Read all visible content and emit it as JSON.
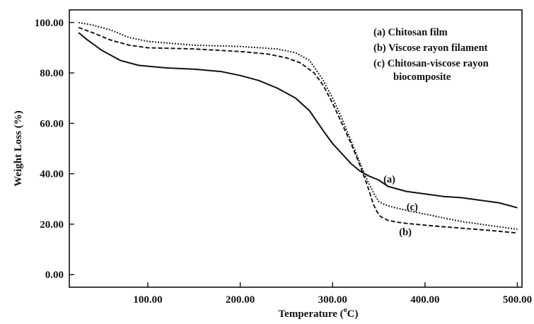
{
  "chart_data": {
    "type": "line",
    "title": "",
    "xlabel": "Temperature (",
    "xlabel_sup": "o",
    "xlabel_unit": "C)",
    "ylabel": "Weight Loss (%)",
    "xlim": [
      15,
      505
    ],
    "ylim": [
      -5,
      105
    ],
    "xticks": [
      "100.00",
      "200.00",
      "300.00",
      "400.00",
      "500.00"
    ],
    "xtick_values": [
      100,
      200,
      300,
      400,
      500
    ],
    "yticks": [
      "0.00",
      "20.00",
      "40.00",
      "60.00",
      "80.00",
      "100.00"
    ],
    "ytick_values": [
      0,
      20,
      40,
      60,
      80,
      100
    ],
    "grid": false,
    "legend_position": "top-right",
    "legend": [
      {
        "line1": "(a) Chitosan film"
      },
      {
        "line1": "(b) Viscose rayon filament"
      },
      {
        "line1": "(c) Chitosan-viscose  rayon",
        "line2": "biocomposite"
      }
    ],
    "annotations": [
      {
        "text": "(a)",
        "x": 355,
        "y": 38
      },
      {
        "text": "(c)",
        "x": 380,
        "y": 27
      },
      {
        "text": "(b)",
        "x": 372,
        "y": 17
      }
    ],
    "series": [
      {
        "name": "(a) Chitosan film",
        "style": "solid",
        "x": [
          25,
          35,
          50,
          70,
          90,
          120,
          150,
          180,
          200,
          220,
          240,
          260,
          275,
          290,
          300,
          310,
          320,
          330,
          340,
          350,
          360,
          380,
          400,
          420,
          440,
          460,
          480,
          500
        ],
        "y": [
          96,
          93,
          89,
          85,
          83,
          82,
          81.5,
          80.5,
          79,
          77,
          74,
          70,
          65,
          57,
          52,
          48,
          44,
          41,
          39,
          37.5,
          35,
          33,
          32,
          31,
          30.5,
          29.5,
          28.5,
          26.5
        ]
      },
      {
        "name": "(b) Viscose rayon filament",
        "style": "dashed",
        "x": [
          25,
          40,
          60,
          80,
          100,
          150,
          200,
          230,
          250,
          265,
          280,
          290,
          300,
          310,
          320,
          330,
          338,
          344,
          348,
          352,
          360,
          370,
          380,
          400,
          420,
          440,
          460,
          480,
          500
        ],
        "y": [
          98,
          96,
          93,
          91,
          90,
          89.5,
          88.5,
          87.5,
          86,
          84,
          80,
          75,
          68,
          60,
          52,
          43,
          35,
          28,
          25,
          23,
          21.5,
          20.8,
          20.3,
          19.6,
          19,
          18.4,
          17.8,
          17.2,
          16.5
        ]
      },
      {
        "name": "(c) Chitosan-viscose rayon biocomposite",
        "style": "dotted",
        "x": [
          25,
          40,
          60,
          80,
          100,
          150,
          200,
          240,
          260,
          275,
          290,
          300,
          310,
          320,
          330,
          338,
          345,
          350,
          356,
          365,
          380,
          400,
          420,
          440,
          460,
          480,
          500
        ],
        "y": [
          100,
          99,
          97,
          94,
          92.5,
          91,
          90.5,
          89.5,
          88,
          85,
          77,
          70,
          62,
          53,
          44,
          37,
          32,
          29,
          27.8,
          26.8,
          25.5,
          24,
          22.5,
          21,
          20,
          19,
          18
        ]
      }
    ]
  }
}
